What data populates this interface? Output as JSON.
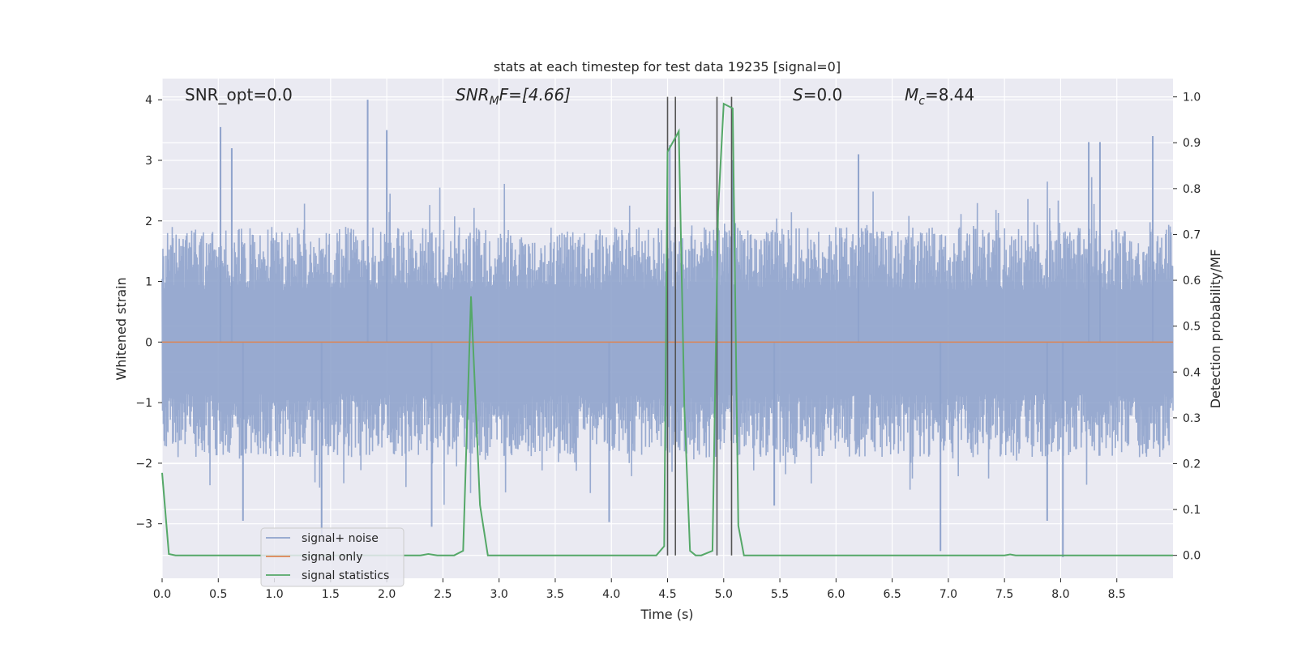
{
  "chart_data": {
    "type": "line",
    "title": "stats at each timestep for test data 19235 [signal=0]",
    "xlabel": "Time (s)",
    "ylabel_left": "Whitened strain",
    "ylabel_right": "Detection probability/MF",
    "xlim": [
      0,
      9.0
    ],
    "ylim_left": [
      -3.9,
      4.35
    ],
    "ylim_right": [
      -0.05,
      1.04
    ],
    "x_ticks": [
      "0.0",
      "0.5",
      "1.0",
      "1.5",
      "2.0",
      "2.5",
      "3.0",
      "3.5",
      "4.0",
      "4.5",
      "5.0",
      "5.5",
      "6.0",
      "6.5",
      "7.0",
      "7.5",
      "8.0",
      "8.5"
    ],
    "y_ticks_left": [
      "4",
      "3",
      "2",
      "1",
      "0",
      "−1",
      "−2",
      "−3"
    ],
    "y_ticks_right": [
      "1.0",
      "0.9",
      "0.8",
      "0.7",
      "0.6",
      "0.5",
      "0.4",
      "0.3",
      "0.2",
      "0.1",
      "0.0"
    ],
    "grid": true,
    "annotations": {
      "snr_opt": "SNR_opt=0.0",
      "snr_mf_main": "SNR",
      "snr_mf_sub": "M",
      "snr_mf_tail": "F=[4.66]",
      "s_main": "S",
      "s_tail": "=0.0",
      "mc_main": "M",
      "mc_sub": "c",
      "mc_tail": "=8.44"
    },
    "legend": {
      "placement": "lower-left",
      "entries": [
        "signal+ noise",
        "signal only",
        "signal statistics"
      ]
    },
    "series": [
      {
        "name": "signal+ noise",
        "axis": "left",
        "color": "#8fa3cc",
        "kind": "noise",
        "typical_envelope": [
          -1.9,
          1.9
        ],
        "peak_max": 4.0,
        "peak_min": -3.55,
        "peaks": [
          [
            0.52,
            3.55
          ],
          [
            0.62,
            3.2
          ],
          [
            1.83,
            4.0
          ],
          [
            2.0,
            3.5
          ],
          [
            4.52,
            3.25
          ],
          [
            5.08,
            3.0
          ],
          [
            6.2,
            3.1
          ],
          [
            8.25,
            3.3
          ],
          [
            8.35,
            3.3
          ],
          [
            8.82,
            3.4
          ],
          [
            0.72,
            -2.95
          ],
          [
            1.42,
            -3.2
          ],
          [
            2.4,
            -3.05
          ],
          [
            3.98,
            -2.97
          ],
          [
            5.45,
            -2.7
          ],
          [
            6.93,
            -3.45
          ],
          [
            8.02,
            -3.55
          ],
          [
            7.88,
            -2.95
          ]
        ]
      },
      {
        "name": "signal only",
        "axis": "left",
        "color": "#dd8452",
        "x": [
          0,
          9.0
        ],
        "y": [
          0,
          0
        ]
      },
      {
        "name": "signal statistics",
        "axis": "right",
        "color": "#55a868",
        "x": [
          0,
          0.06,
          0.12,
          0.5,
          1.0,
          2.0,
          2.3,
          2.37,
          2.45,
          2.6,
          2.68,
          2.75,
          2.83,
          2.9,
          3.5,
          4.0,
          4.4,
          4.47,
          4.5,
          4.6,
          4.65,
          4.7,
          4.75,
          4.8,
          4.9,
          4.95,
          5.0,
          5.08,
          5.13,
          5.18,
          5.5,
          7.5,
          7.55,
          7.6,
          9.0
        ],
        "y": [
          0.18,
          0.003,
          0.0,
          0.0,
          0.0,
          0.0,
          0.0,
          0.003,
          0.0,
          0.0,
          0.01,
          0.565,
          0.11,
          0.0,
          0.0,
          0.0,
          0.0,
          0.02,
          0.88,
          0.925,
          0.32,
          0.01,
          0.0,
          0.0,
          0.01,
          0.75,
          0.985,
          0.975,
          0.065,
          0.0,
          0.0,
          0.0,
          0.002,
          0.0,
          0.0
        ]
      }
    ],
    "vertical_lines": [
      4.5,
      4.57,
      4.94,
      5.07
    ]
  }
}
